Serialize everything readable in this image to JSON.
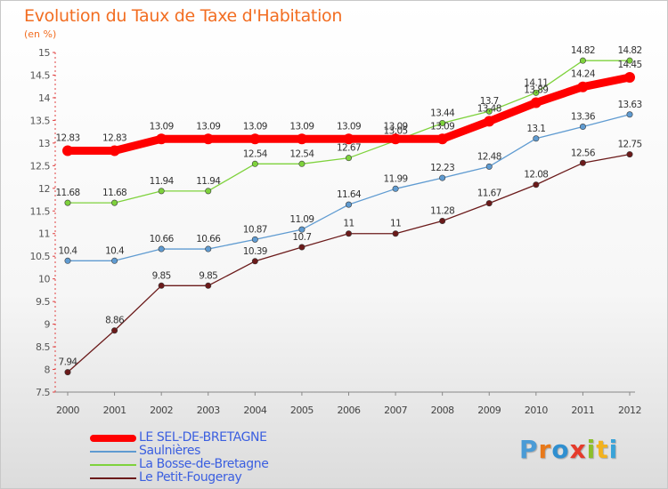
{
  "chart_data": {
    "type": "line",
    "title": "Evolution du Taux de Taxe d'Habitation",
    "subtitle": "(en %)",
    "categories": [
      "2000",
      "2001",
      "2002",
      "2003",
      "2004",
      "2005",
      "2006",
      "2007",
      "2008",
      "2009",
      "2010",
      "2011",
      "2012"
    ],
    "ylim": [
      7.5,
      15
    ],
    "yticks": [
      7.5,
      8,
      8.5,
      9,
      9.5,
      10,
      10.5,
      11,
      11.5,
      12,
      12.5,
      13,
      13.5,
      14,
      14.5,
      15
    ],
    "ytick_labels": [
      "7.5",
      "8",
      "8.5",
      "9",
      "9.5",
      "10",
      "10.5",
      "11",
      "11.5",
      "12",
      "12.5",
      "13",
      "13.5",
      "14",
      "14.5",
      "15"
    ],
    "grid": false,
    "legend_position": "bottom-left",
    "series": [
      {
        "name": "LE SEL-DE-BRETAGNE",
        "color": "#ff0000",
        "style": "thick",
        "values": [
          12.83,
          12.83,
          13.09,
          13.09,
          13.09,
          13.09,
          13.09,
          13.09,
          13.09,
          13.48,
          13.89,
          14.24,
          14.45
        ],
        "labels": [
          "12.83",
          "12.83",
          "13.09",
          "13.09",
          "13.09",
          "13.09",
          "13.09",
          "13.09",
          "13.09",
          "13.48",
          "13.89",
          "14.24",
          "14.45"
        ]
      },
      {
        "name": "Saulnières",
        "color": "#5f9bd1",
        "style": "thin",
        "values": [
          10.4,
          10.4,
          10.66,
          10.66,
          10.87,
          11.09,
          11.64,
          11.99,
          12.23,
          12.48,
          13.1,
          13.36,
          13.63
        ],
        "labels": [
          "10.4",
          "10.4",
          "10.66",
          "10.66",
          "10.87",
          "11.09",
          "11.64",
          "11.99",
          "12.23",
          "12.48",
          "13.1",
          "13.36",
          "13.63"
        ]
      },
      {
        "name": "La Bosse-de-Bretagne",
        "color": "#7ed23c",
        "style": "thin",
        "values": [
          11.68,
          11.68,
          11.94,
          11.94,
          12.54,
          12.54,
          12.67,
          13.05,
          13.44,
          13.7,
          14.11,
          14.82,
          14.82
        ],
        "labels": [
          "11.68",
          "11.68",
          "11.94",
          "11.94",
          "12.54",
          "12.54",
          "12.67",
          "13.05",
          "13.44",
          "13.7",
          "14.11",
          "14.82",
          "14.82"
        ]
      },
      {
        "name": "Le Petit-Fougeray",
        "color": "#6b1a1a",
        "style": "thin",
        "values": [
          7.94,
          8.86,
          9.85,
          9.85,
          10.39,
          10.7,
          11,
          11,
          11.28,
          11.67,
          12.08,
          12.56,
          12.75
        ],
        "labels": [
          "7.94",
          "8.86",
          "9.85",
          "9.85",
          "10.39",
          "10.7",
          "11",
          "11",
          "11.28",
          "11.67",
          "12.08",
          "12.56",
          "12.75"
        ]
      }
    ]
  },
  "brand": {
    "letters": [
      "P",
      "r",
      "o",
      "x",
      "i",
      "t",
      "i"
    ]
  }
}
